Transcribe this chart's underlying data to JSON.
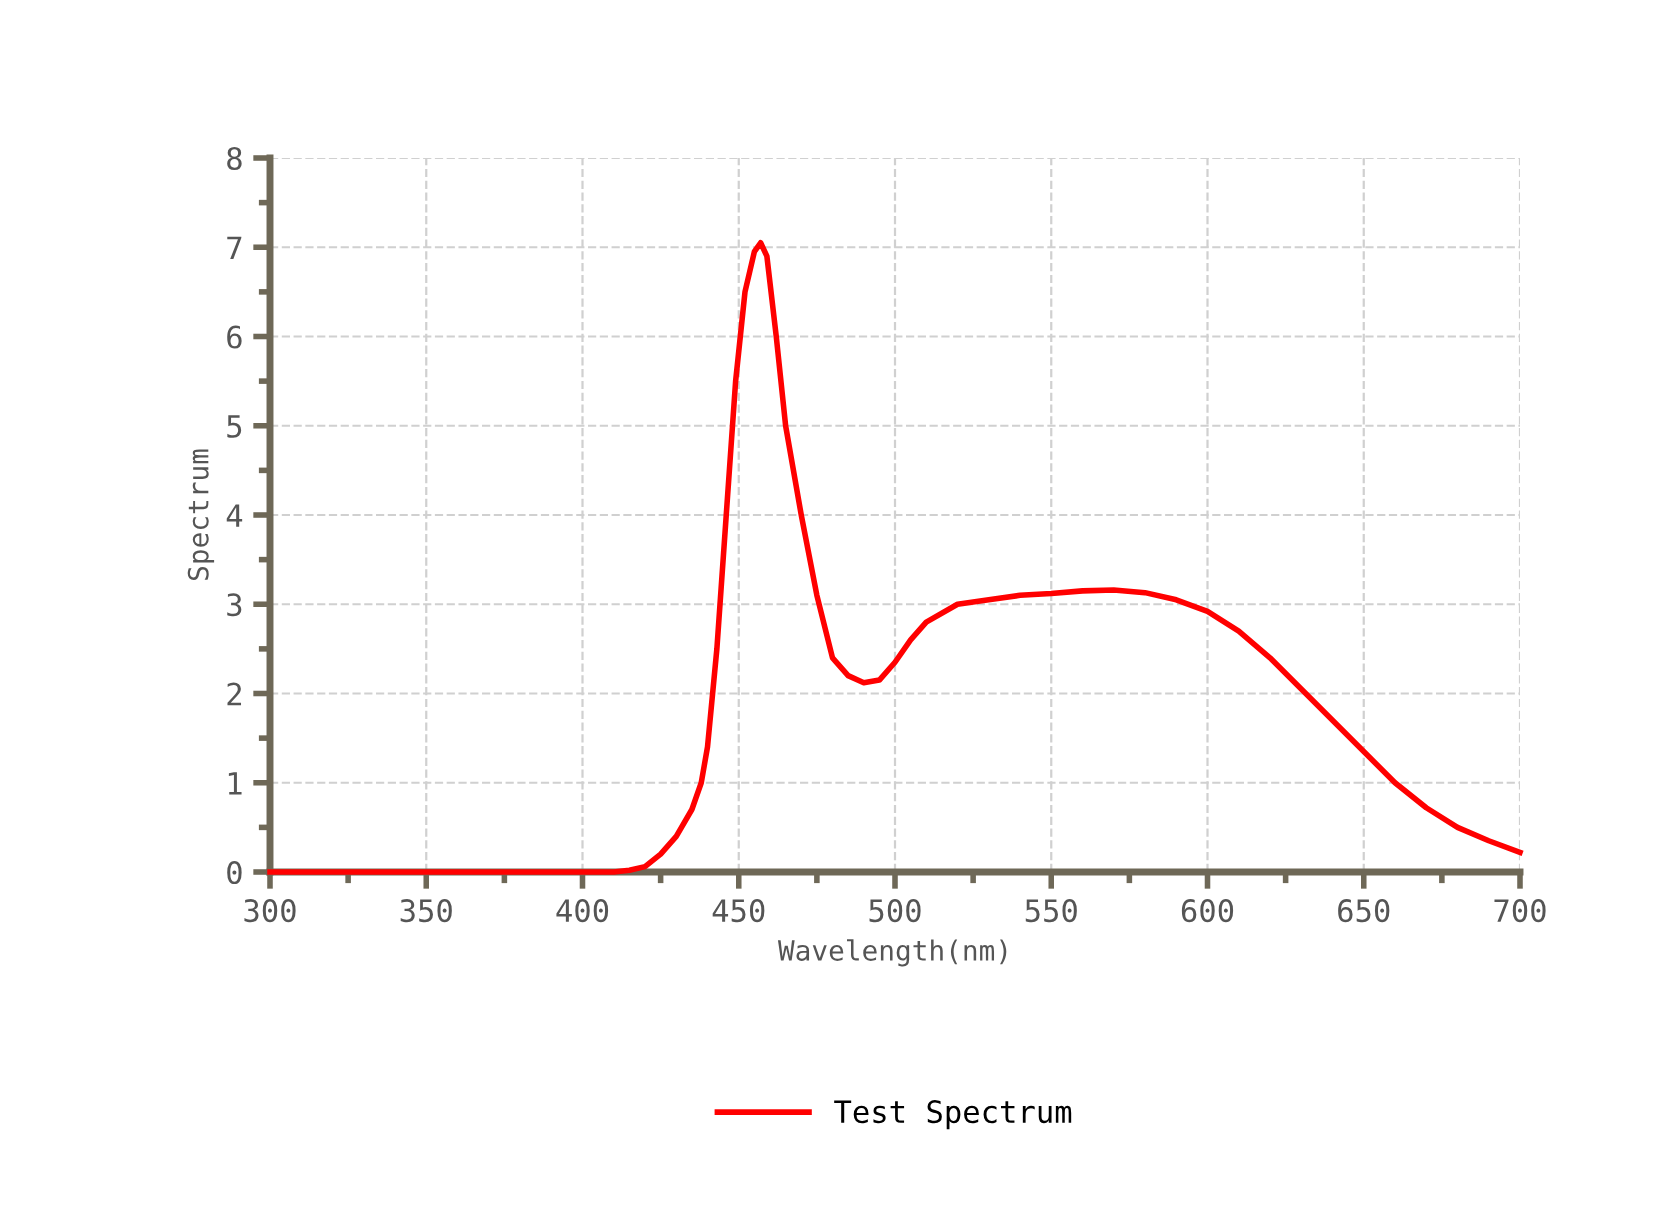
{
  "chart_data": {
    "type": "line",
    "xlabel": "Wavelength(nm)",
    "ylabel": "Spectrum",
    "x": [
      300,
      320,
      340,
      360,
      380,
      400,
      410,
      415,
      420,
      425,
      430,
      435,
      438,
      440,
      443,
      446,
      449,
      452,
      455,
      457,
      459,
      462,
      465,
      470,
      475,
      480,
      485,
      490,
      495,
      500,
      505,
      510,
      520,
      530,
      540,
      550,
      560,
      570,
      580,
      590,
      600,
      610,
      620,
      630,
      640,
      650,
      660,
      670,
      680,
      690,
      700
    ],
    "series": [
      {
        "name": "Test Spectrum",
        "color": "#ff0000",
        "values": [
          0,
          0,
          0,
          0,
          0,
          0,
          0,
          0.02,
          0.06,
          0.2,
          0.4,
          0.7,
          1.0,
          1.4,
          2.5,
          4.0,
          5.5,
          6.5,
          6.95,
          7.05,
          6.9,
          6.0,
          5.0,
          4.0,
          3.1,
          2.4,
          2.2,
          2.12,
          2.15,
          2.35,
          2.6,
          2.8,
          3.0,
          3.05,
          3.1,
          3.12,
          3.15,
          3.16,
          3.13,
          3.05,
          2.92,
          2.7,
          2.4,
          2.05,
          1.7,
          1.35,
          1.0,
          0.72,
          0.5,
          0.35,
          0.22
        ]
      }
    ],
    "xlim": [
      300,
      700
    ],
    "ylim": [
      0,
      8
    ],
    "xticks": [
      300,
      {
        "value": 325,
        "label": null
      },
      350,
      {
        "value": 375,
        "label": null
      },
      400,
      {
        "value": 425,
        "label": null
      },
      450,
      {
        "value": 475,
        "label": null
      },
      500,
      {
        "value": 525,
        "label": null
      },
      550,
      {
        "value": 575,
        "label": null
      },
      600,
      {
        "value": 625,
        "label": null
      },
      650,
      {
        "value": 675,
        "label": null
      },
      700
    ],
    "yticks": [
      0,
      {
        "value": 0.5,
        "label": null
      },
      1,
      {
        "value": 1.5,
        "label": null
      },
      2,
      {
        "value": 2.5,
        "label": null
      },
      3,
      {
        "value": 3.5,
        "label": null
      },
      4,
      {
        "value": 4.5,
        "label": null
      },
      5,
      {
        "value": 5.5,
        "label": null
      },
      6,
      {
        "value": 6.5,
        "label": null
      },
      7,
      {
        "value": 7.5,
        "label": null
      },
      8
    ],
    "grid": true,
    "legend": "bottom",
    "marker": "none",
    "line_style": "solid"
  }
}
